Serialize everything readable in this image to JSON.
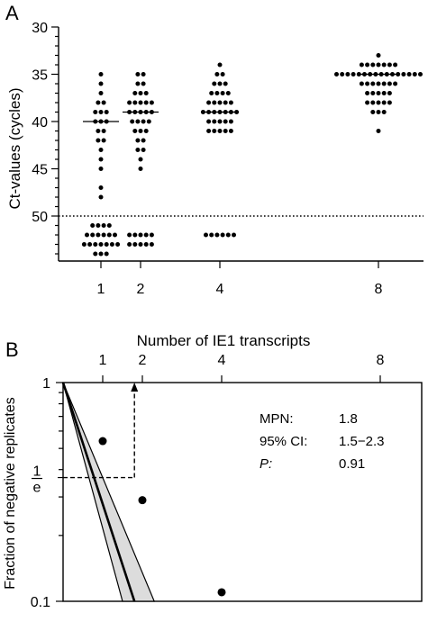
{
  "panels": {
    "a": {
      "letter": "A"
    },
    "b": {
      "letter": "B"
    }
  },
  "chart_data": [
    {
      "type": "scatter",
      "panel": "A",
      "xlabel": "Number of IE1 transcripts",
      "ylabel": "Ct-values (cycles)",
      "x_ticks": [
        1,
        2,
        4,
        8
      ],
      "y_ticks": [
        30,
        35,
        40,
        45,
        50
      ],
      "ylim": [
        30,
        55
      ],
      "y_inverted": true,
      "threshold": 50,
      "threshold_style": "dotted",
      "series": [
        {
          "x": 1,
          "median": 40,
          "points": [
            35,
            36,
            37,
            38,
            38,
            39,
            39,
            39,
            40,
            40,
            40,
            41,
            41,
            42,
            42,
            43,
            44,
            45,
            47,
            48,
            51,
            51,
            51,
            51,
            52,
            52,
            52,
            52,
            52,
            52,
            53,
            53,
            53,
            53,
            53,
            53,
            53,
            54,
            54,
            54
          ]
        },
        {
          "x": 2,
          "median": 39,
          "points": [
            35,
            35,
            36,
            36,
            37,
            37,
            37,
            38,
            38,
            38,
            38,
            38,
            39,
            39,
            39,
            39,
            39,
            40,
            40,
            40,
            40,
            41,
            41,
            41,
            42,
            42,
            43,
            43,
            44,
            45,
            52,
            52,
            52,
            52,
            52,
            53,
            53,
            53,
            53,
            53
          ]
        },
        {
          "x": 4,
          "median": 39,
          "points": [
            34,
            35,
            35,
            36,
            36,
            36,
            37,
            37,
            37,
            37,
            38,
            38,
            38,
            38,
            38,
            39,
            39,
            39,
            39,
            39,
            39,
            39,
            40,
            40,
            40,
            40,
            40,
            41,
            41,
            41,
            41,
            41,
            52,
            52,
            52,
            52,
            52,
            52
          ]
        },
        {
          "x": 8,
          "median": 35,
          "points": [
            33,
            34,
            34,
            34,
            34,
            34,
            34,
            34,
            35,
            35,
            35,
            35,
            35,
            35,
            35,
            35,
            35,
            35,
            35,
            35,
            35,
            35,
            35,
            35,
            36,
            36,
            36,
            36,
            36,
            36,
            36,
            37,
            37,
            37,
            37,
            37,
            38,
            38,
            38,
            38,
            38,
            39,
            39,
            39,
            41
          ]
        }
      ]
    },
    {
      "type": "line",
      "panel": "B",
      "ylabel": "Fraction of negative replicates",
      "x_top_ticks": [
        1,
        2,
        4,
        8
      ],
      "y_log_scale": true,
      "ylim": [
        0.1,
        1
      ],
      "y_ticks": [
        {
          "value": 1,
          "label": "1"
        },
        {
          "value": 0.367879,
          "label_num": "1",
          "label_den": "e"
        },
        {
          "value": 0.1,
          "label": "0.1"
        }
      ],
      "xlim": [
        0,
        10
      ],
      "points": [
        {
          "x": 1,
          "y": 0.54
        },
        {
          "x": 2,
          "y": 0.29
        },
        {
          "x": 4,
          "y": 0.11
        }
      ],
      "fit": {
        "slope_per_unit_x": -0.5556
      },
      "ci_band": {
        "lower_slope_per_unit_x": -0.6667,
        "upper_slope_per_unit_x": -0.4348
      },
      "mpn_marker_x": 1.8,
      "stats": {
        "rows": [
          {
            "label": "MPN:",
            "value": "1.8"
          },
          {
            "label": "95% CI:",
            "value": "1.5−2.3"
          },
          {
            "label": "P:",
            "value": "0.91",
            "italic": true
          }
        ]
      }
    }
  ]
}
